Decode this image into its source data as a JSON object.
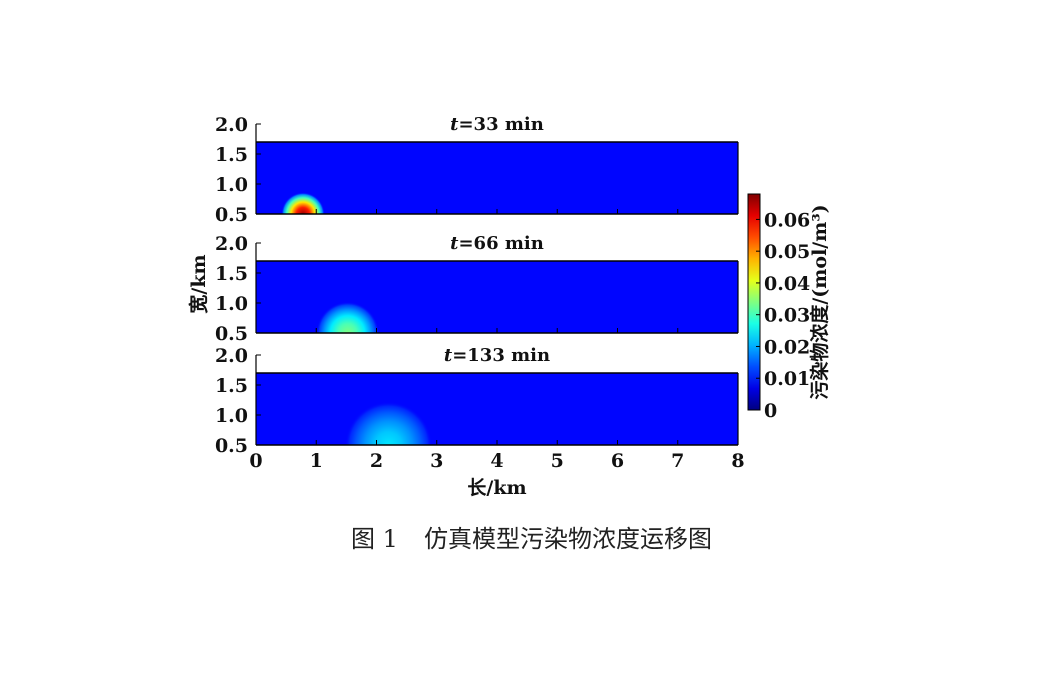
{
  "caption": {
    "number": "图 1",
    "text": "仿真模型污染物浓度运移图"
  },
  "chart_data": {
    "type": "heatmap",
    "xlabel": "长/km",
    "ylabel": "宽/km",
    "xlim": [
      0,
      8
    ],
    "x_ticks": [
      "0",
      "1",
      "2",
      "3",
      "4",
      "5",
      "6",
      "7",
      "8"
    ],
    "ylim": [
      0.5,
      2.0
    ],
    "y_ticks": [
      "0.5",
      "1.0",
      "1.5",
      "2.0"
    ],
    "colorbar": {
      "label": "污染物浓度/(mol/m³)",
      "range": [
        0,
        0.068
      ],
      "ticks": [
        "0",
        "0.01",
        "0.02",
        "0.03",
        "0.04",
        "0.05",
        "0.06"
      ],
      "colormap": "jet"
    },
    "panels": [
      {
        "title": "t=33 min",
        "plume_center_x_km": 0.78,
        "plume_center_y_km": 0.5,
        "peak_concentration": 0.066,
        "radius_km": 0.36
      },
      {
        "title": "t=66 min",
        "plume_center_x_km": 1.52,
        "plume_center_y_km": 0.5,
        "peak_concentration": 0.034,
        "radius_km": 0.52
      },
      {
        "title": "t=133 min",
        "plume_center_x_km": 2.2,
        "plume_center_y_km": 0.5,
        "peak_concentration": 0.024,
        "radius_km": 0.72
      }
    ]
  }
}
